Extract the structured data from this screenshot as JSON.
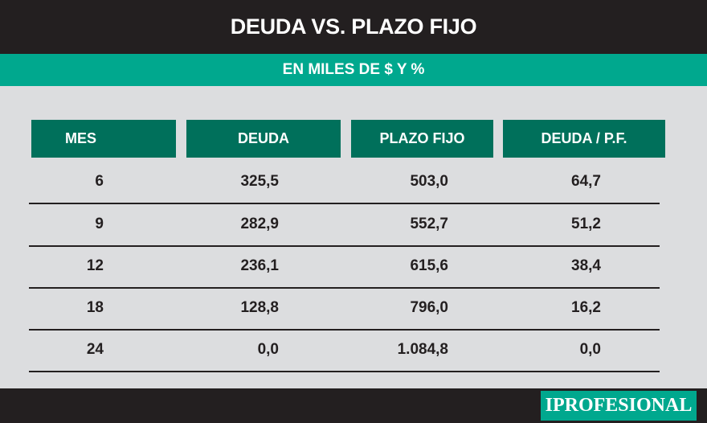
{
  "title": "DEUDA VS. PLAZO FIJO",
  "subtitle": "EN MILES DE $ Y %",
  "logo_text": "IPROFESIONAL",
  "colors": {
    "title_bg": "#231f20",
    "accent": "#00a88e",
    "header_bg": "#00705b",
    "page_bg": "#dcdddf"
  },
  "chart_data": {
    "type": "table",
    "title": "DEUDA VS. PLAZO FIJO",
    "subtitle": "EN MILES DE $ Y %",
    "columns": [
      "MES",
      "DEUDA",
      "PLAZO FIJO",
      "DEUDA / P.F."
    ],
    "rows": [
      [
        "6",
        "325,5",
        "503,0",
        "64,7"
      ],
      [
        "9",
        "282,9",
        "552,7",
        "51,2"
      ],
      [
        "12",
        "236,1",
        "615,6",
        "38,4"
      ],
      [
        "18",
        "128,8",
        "796,0",
        "16,2"
      ],
      [
        "24",
        "0,0",
        "1.084,8",
        "0,0"
      ]
    ]
  }
}
